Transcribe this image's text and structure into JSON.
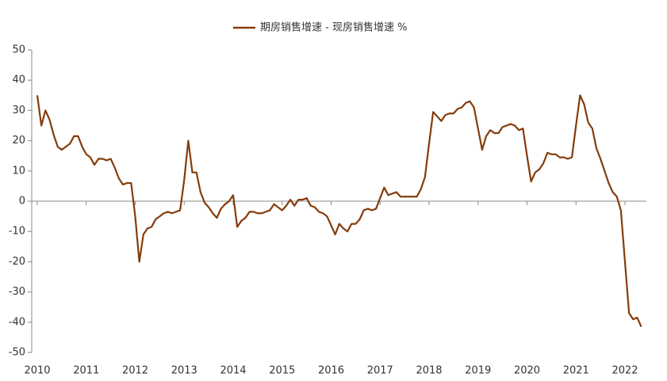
{
  "chart_data": {
    "type": "line",
    "series": [
      {
        "name": "期房销售增速 - 现房销售增速 %",
        "color": "#843c0c",
        "values": [
          35,
          25,
          30,
          27,
          22,
          18,
          17,
          18,
          19,
          21.5,
          21.5,
          18,
          15.5,
          14.5,
          12,
          14,
          14,
          13.5,
          14,
          11,
          7.5,
          5.5,
          6,
          6,
          -5,
          -20,
          -11,
          -9,
          -8.5,
          -6,
          -5,
          -4,
          -3.5,
          -4,
          -3.5,
          -3,
          7,
          20,
          9.5,
          9.5,
          3,
          -0.5,
          -2,
          -4,
          -5.5,
          -2.5,
          -1,
          0,
          2,
          -8.5,
          -6.5,
          -5.5,
          -3.5,
          -3.5,
          -4,
          -4,
          -3.5,
          -3,
          -1,
          -2,
          -3,
          -1.5,
          0.5,
          -1.5,
          0.5,
          0.5,
          1,
          -1.5,
          -2,
          -3.5,
          -4,
          -5,
          -8,
          -11,
          -7.5,
          -9,
          -10,
          -7.5,
          -7.5,
          -6,
          -3,
          -2.5,
          -3,
          -2.5,
          1,
          4.5,
          2,
          2.5,
          3,
          1.5,
          1.5,
          1.5,
          1.5,
          1.5,
          4,
          8,
          19,
          29.5,
          28,
          26.5,
          28.5,
          29,
          29,
          30.5,
          31,
          32.5,
          33,
          31,
          24,
          17,
          21.5,
          23.5,
          22.5,
          22.5,
          24.5,
          25,
          25.5,
          25,
          23.5,
          24,
          15,
          6.5,
          9.5,
          10.5,
          12.5,
          16,
          15.5,
          15.5,
          14.5,
          14.5,
          14,
          14.5,
          25,
          35,
          32,
          26,
          24,
          17.5,
          14,
          10,
          6,
          3,
          1.5,
          -3,
          -20,
          -37,
          -39,
          -38.5,
          -41.5
        ]
      }
    ],
    "categories": [
      "2010",
      null,
      null,
      null,
      null,
      null,
      null,
      null,
      null,
      null,
      null,
      null,
      "2011",
      null,
      null,
      null,
      null,
      null,
      null,
      null,
      null,
      null,
      null,
      null,
      "2012",
      null,
      null,
      null,
      null,
      null,
      null,
      null,
      null,
      null,
      null,
      null,
      "2013",
      null,
      null,
      null,
      null,
      null,
      null,
      null,
      null,
      null,
      null,
      null,
      "2014",
      null,
      null,
      null,
      null,
      null,
      null,
      null,
      null,
      null,
      null,
      null,
      "2015",
      null,
      null,
      null,
      null,
      null,
      null,
      null,
      null,
      null,
      null,
      null,
      "2016",
      null,
      null,
      null,
      null,
      null,
      null,
      null,
      null,
      null,
      null,
      null,
      "2017",
      null,
      null,
      null,
      null,
      null,
      null,
      null,
      null,
      null,
      null,
      null,
      "2018",
      null,
      null,
      null,
      null,
      null,
      null,
      null,
      null,
      null,
      null,
      null,
      "2019",
      null,
      null,
      null,
      null,
      null,
      null,
      null,
      null,
      null,
      null,
      null,
      "2020",
      null,
      null,
      null,
      null,
      null,
      null,
      null,
      null,
      null,
      null,
      null,
      "2021",
      null,
      null,
      null,
      null,
      null,
      null,
      null,
      null,
      null,
      null,
      null,
      "2022",
      null,
      null,
      null,
      null
    ],
    "ylim": [
      -50,
      50
    ],
    "yticks": [
      -50,
      -40,
      -30,
      -20,
      -10,
      0,
      10,
      20,
      30,
      40,
      50
    ],
    "legend": "top"
  }
}
